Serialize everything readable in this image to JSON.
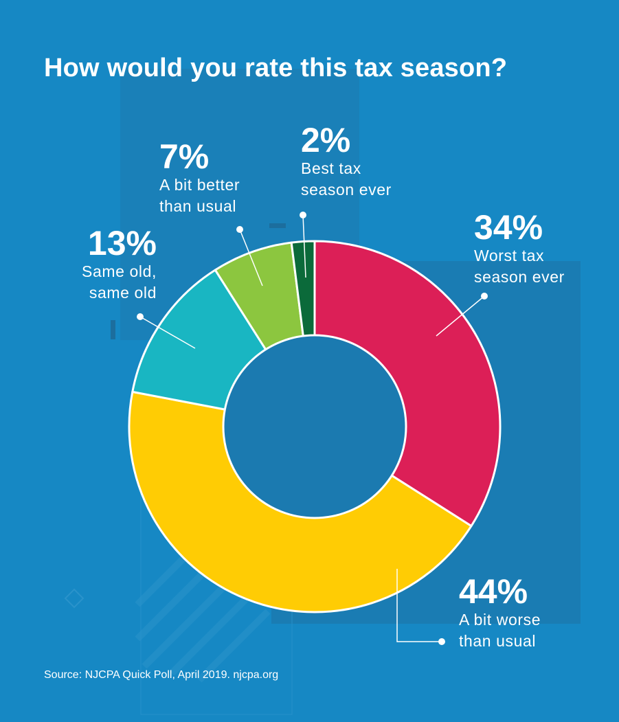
{
  "title": "How would you rate this tax season?",
  "source": "Source: NJCPA Quick Poll, April 2019. njcpa.org",
  "colors": {
    "background": "#1688c4",
    "background_panel": "#1b7bb0",
    "donut_hole": "#1b7ab0"
  },
  "chart_data": {
    "type": "pie",
    "subtype": "donut",
    "title": "How would you rate this tax season?",
    "slices": [
      {
        "label": "Worst tax season ever",
        "value": 34,
        "display": "34%",
        "color": "#dc1f57"
      },
      {
        "label": "A bit worse than usual",
        "value": 44,
        "display": "44%",
        "color": "#ffcc04"
      },
      {
        "label": "Same old, same old",
        "value": 13,
        "display": "13%",
        "color": "#19b6c2"
      },
      {
        "label": "A bit better than usual",
        "value": 7,
        "display": "7%",
        "color": "#8cc63f"
      },
      {
        "label": "Best tax season ever",
        "value": 2,
        "display": "2%",
        "color": "#0b6a3a"
      }
    ]
  },
  "labels": {
    "worst": {
      "pct": "34%",
      "desc": "Worst tax\nseason ever"
    },
    "worse": {
      "pct": "44%",
      "desc": "A bit worse\nthan usual"
    },
    "same": {
      "pct": "13%",
      "desc": "Same old,\nsame old"
    },
    "better": {
      "pct": "7%",
      "desc": "A bit better\nthan usual"
    },
    "best": {
      "pct": "2%",
      "desc": "Best tax\nseason ever"
    }
  }
}
